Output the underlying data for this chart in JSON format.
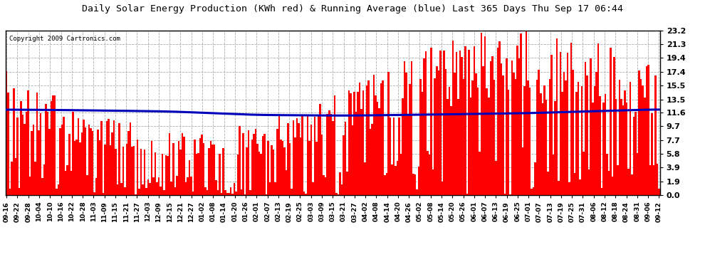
{
  "title": "Daily Solar Energy Production (KWh red) & Running Average (blue) Last 365 Days Thu Sep 17 06:44",
  "copyright": "Copyright 2009 Cartronics.com",
  "yticks": [
    0.0,
    1.9,
    3.9,
    5.8,
    7.7,
    9.7,
    11.6,
    13.5,
    15.5,
    17.4,
    19.4,
    21.3,
    23.2
  ],
  "ylim": [
    0.0,
    23.2
  ],
  "bar_color": "#ff0000",
  "avg_color": "#0000bb",
  "bg_color": "#ffffff",
  "title_fontsize": 9.5,
  "copyright_fontsize": 6.5,
  "x_tick_labels": [
    "09-16",
    "09-22",
    "09-28",
    "10-04",
    "10-10",
    "10-16",
    "10-22",
    "10-28",
    "11-03",
    "11-09",
    "11-15",
    "11-21",
    "11-27",
    "12-03",
    "12-09",
    "12-15",
    "12-21",
    "12-27",
    "01-02",
    "01-08",
    "01-14",
    "01-20",
    "01-26",
    "02-01",
    "02-07",
    "02-13",
    "02-19",
    "02-25",
    "03-03",
    "03-09",
    "03-15",
    "03-21",
    "03-27",
    "04-02",
    "04-08",
    "04-14",
    "04-20",
    "04-26",
    "05-02",
    "05-08",
    "05-14",
    "05-20",
    "05-26",
    "06-01",
    "06-07",
    "06-13",
    "06-19",
    "06-25",
    "07-01",
    "07-07",
    "07-13",
    "07-19",
    "07-25",
    "07-31",
    "08-06",
    "08-12",
    "08-18",
    "08-24",
    "08-31",
    "09-06",
    "09-12"
  ],
  "n_days": 365,
  "avg_control_x": [
    0,
    0.08,
    0.25,
    0.38,
    0.52,
    0.65,
    0.8,
    1.0
  ],
  "avg_control_y": [
    12.05,
    12.0,
    11.8,
    11.3,
    11.2,
    11.35,
    11.55,
    12.1
  ]
}
